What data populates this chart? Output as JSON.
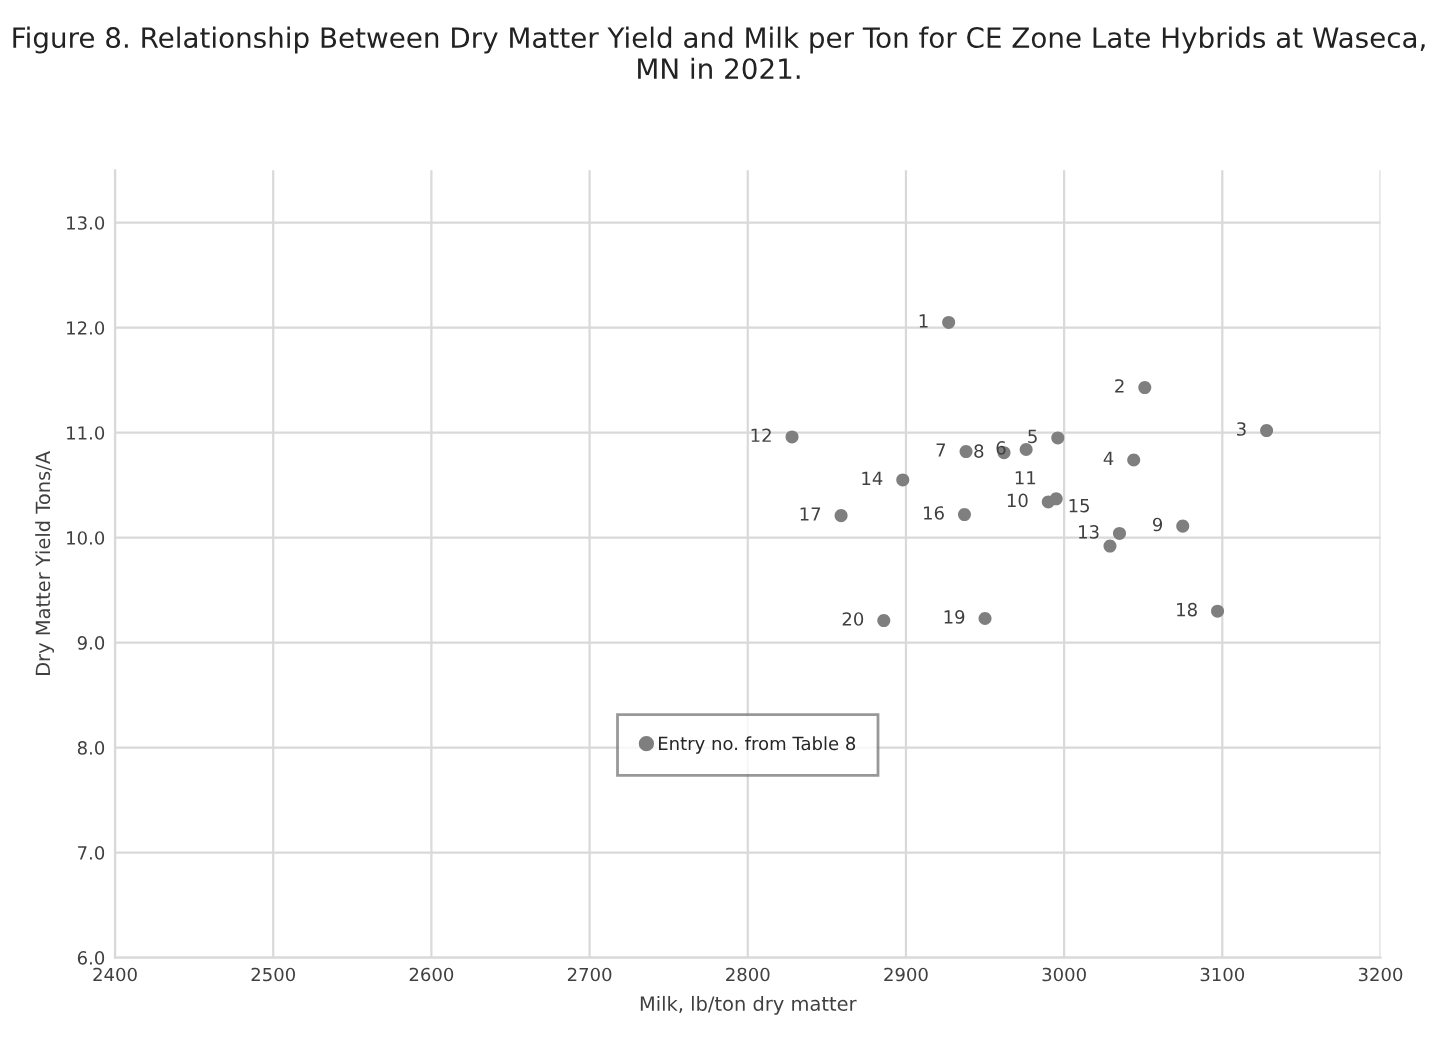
{
  "chart_data": {
    "type": "scatter",
    "title": "Figure 8. Relationship Between Dry Matter Yield and Milk per Ton for CE Zone Late Hybrids at Waseca, MN in 2021.",
    "xlabel": "Milk, lb/ton dry matter",
    "ylabel": "Dry Matter Yield Tons/A",
    "series": [
      {
        "name": "Entry no. from Table 8",
        "color": "#7f7f7f",
        "x": [
          2927,
          3051,
          3128,
          3044,
          2996,
          2976,
          2938,
          2962,
          3075,
          2990,
          2995,
          2828,
          3035,
          2898,
          3029,
          2937,
          2859,
          3097,
          2950,
          2886
        ],
        "values": [
          12.05,
          11.43,
          11.02,
          10.74,
          10.95,
          10.84,
          10.82,
          10.81,
          10.11,
          10.34,
          10.37,
          10.96,
          10.04,
          10.55,
          9.92,
          10.22,
          10.21,
          9.3,
          9.23,
          9.21
        ]
      }
    ],
    "annotations": [
      {
        "text": "1",
        "x": 2927,
        "y": 12.05
      },
      {
        "text": "2",
        "x": 3051,
        "y": 11.43
      },
      {
        "text": "3",
        "x": 3128,
        "y": 11.02
      },
      {
        "text": "4",
        "x": 3044,
        "y": 10.74
      },
      {
        "text": "5",
        "x": 2996,
        "y": 10.95
      },
      {
        "text": "6",
        "x": 2976,
        "y": 10.84
      },
      {
        "text": "7",
        "x": 2938,
        "y": 10.82
      },
      {
        "text": "8",
        "x": 2962,
        "y": 10.81
      },
      {
        "text": "9",
        "x": 3075,
        "y": 10.11
      },
      {
        "text": "10",
        "x": 2990,
        "y": 10.34
      },
      {
        "text": "11",
        "x": 2995,
        "y": 10.37
      },
      {
        "text": "12",
        "x": 2828,
        "y": 10.96
      },
      {
        "text": "13",
        "x": 3035,
        "y": 10.04
      },
      {
        "text": "14",
        "x": 2898,
        "y": 10.55
      },
      {
        "text": "15",
        "x": 3029,
        "y": 9.92
      },
      {
        "text": "16",
        "x": 2937,
        "y": 10.22
      },
      {
        "text": "17",
        "x": 2859,
        "y": 10.21
      },
      {
        "text": "18",
        "x": 3097,
        "y": 9.3
      },
      {
        "text": "19",
        "x": 2950,
        "y": 9.23
      },
      {
        "text": "20",
        "x": 2886,
        "y": 9.21
      }
    ],
    "xlim": [
      2400,
      3200
    ],
    "xticks": [
      2400,
      2500,
      2600,
      2700,
      2800,
      2900,
      3000,
      3100,
      3200
    ],
    "ylim": [
      6.0,
      13.5
    ],
    "yticks": [
      {
        "value": 6,
        "label": "6.0"
      },
      {
        "value": 7,
        "label": "7.0"
      },
      {
        "value": 8,
        "label": "8.0"
      },
      {
        "value": 9,
        "label": "9.0"
      },
      {
        "value": 10,
        "label": "10.0"
      },
      {
        "value": 11,
        "label": "11.0"
      },
      {
        "value": 12,
        "label": "12.0"
      },
      {
        "value": 13,
        "label": "13.0"
      }
    ],
    "grid": true,
    "legend": "bottom",
    "marker": "circle"
  }
}
